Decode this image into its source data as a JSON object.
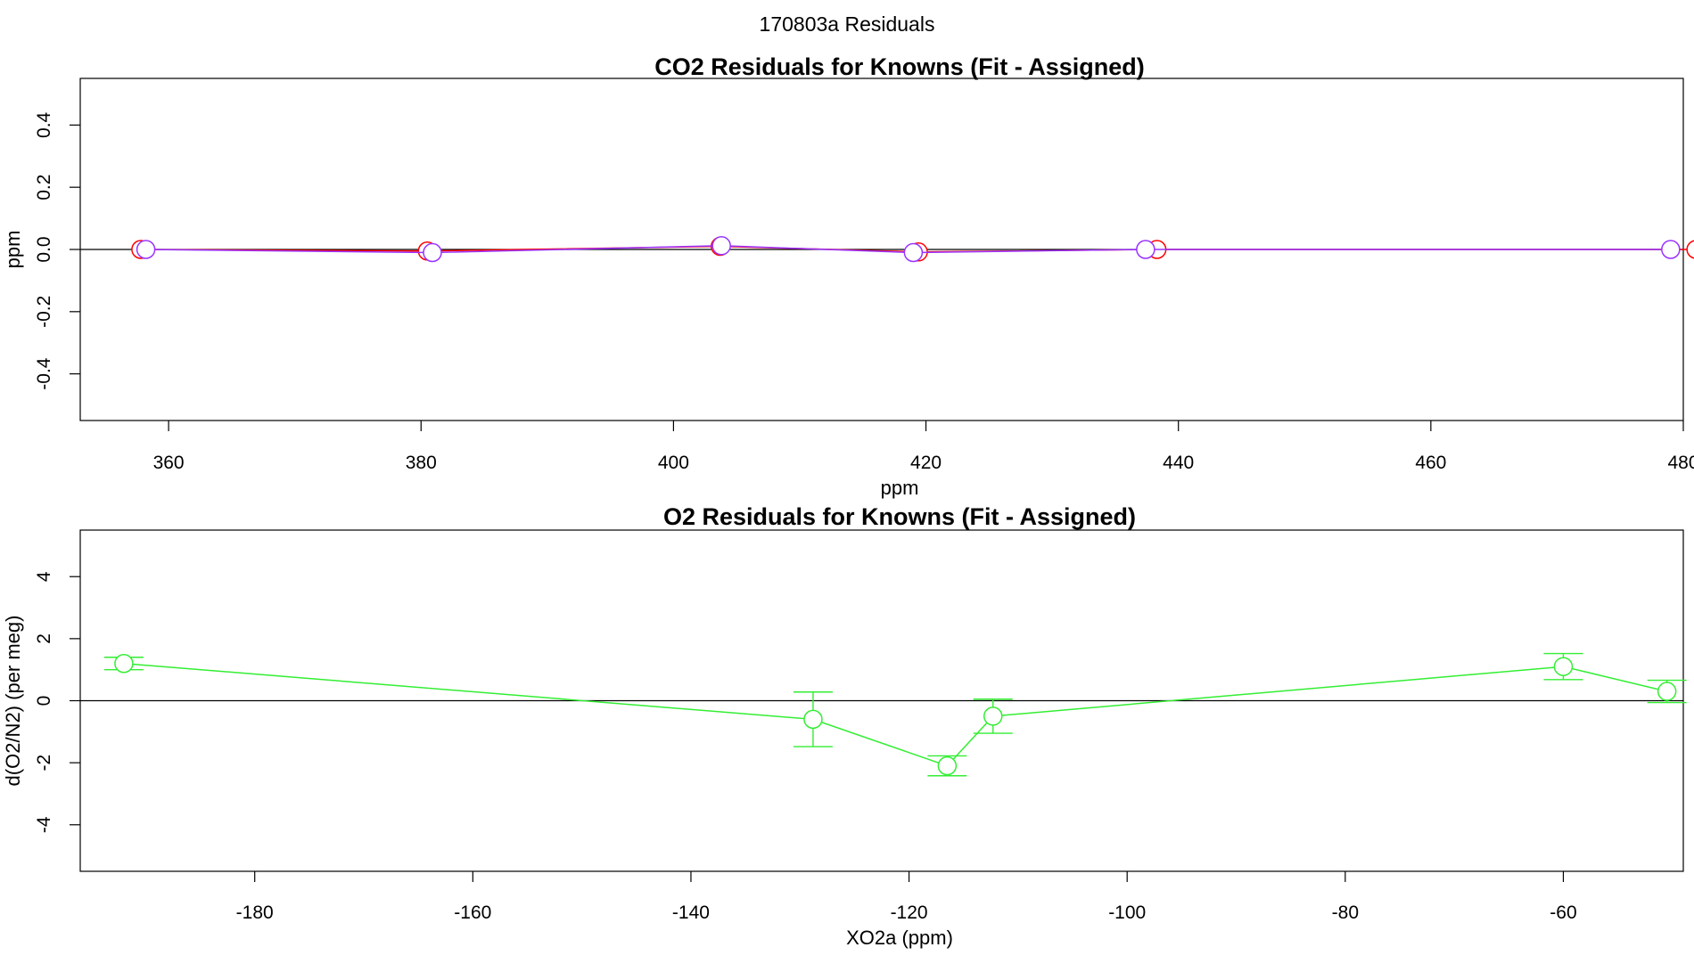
{
  "suptitle": "170803a  Residuals",
  "chart_data": [
    {
      "type": "line",
      "title": "CO2 Residuals for Knowns (Fit - Assigned)",
      "xlabel": "ppm",
      "ylabel": "ppm",
      "xlim": [
        353,
        480
      ],
      "ylim": [
        -0.55,
        0.55
      ],
      "xticks": [
        360,
        380,
        400,
        420,
        440,
        460,
        480
      ],
      "yticks": [
        -0.4,
        -0.2,
        0.0,
        0.2,
        0.4
      ],
      "xtick_labels": [
        "360",
        "380",
        "400",
        "420",
        "440",
        "460",
        "480"
      ],
      "ytick_labels": [
        "-0.4",
        "-0.2",
        "0.0",
        "0.2",
        "0.4"
      ],
      "reference_line": 0,
      "series": [
        {
          "name": "red",
          "color": "#ff0000",
          "x": [
            357.8,
            380.5,
            403.7,
            419.4,
            438.3,
            481.0
          ],
          "y": [
            0.0,
            -0.005,
            0.01,
            -0.008,
            0.0,
            0.0
          ]
        },
        {
          "name": "purple",
          "color": "#9933ff",
          "x": [
            358.2,
            380.9,
            403.8,
            419.0,
            437.4,
            479.0
          ],
          "y": [
            0.0,
            -0.01,
            0.012,
            -0.01,
            0.0,
            0.0
          ]
        }
      ]
    },
    {
      "type": "line",
      "title": "O2 Residuals for Knowns (Fit - Assigned)",
      "xlabel": "XO2a (ppm)",
      "ylabel": "d(O2/N2) (per meg)",
      "xlim": [
        -196,
        -49
      ],
      "ylim": [
        -5.5,
        5.5
      ],
      "xticks": [
        -180,
        -160,
        -140,
        -120,
        -100,
        -80,
        -60
      ],
      "yticks": [
        -4,
        -2,
        0,
        2,
        4
      ],
      "xtick_labels": [
        "-180",
        "-160",
        "-140",
        "-120",
        "-100",
        "-80",
        "-60"
      ],
      "ytick_labels": [
        "-4",
        "-2",
        "0",
        "2",
        "4"
      ],
      "reference_line": 0,
      "series": [
        {
          "name": "green",
          "color": "#33ee33",
          "x": [
            -192.0,
            -128.8,
            -116.5,
            -112.3,
            -60.0,
            -50.5
          ],
          "y": [
            1.2,
            -0.6,
            -2.1,
            -0.5,
            1.1,
            0.3
          ],
          "err": [
            0.2,
            0.88,
            0.32,
            0.55,
            0.42,
            0.36
          ]
        }
      ]
    }
  ]
}
